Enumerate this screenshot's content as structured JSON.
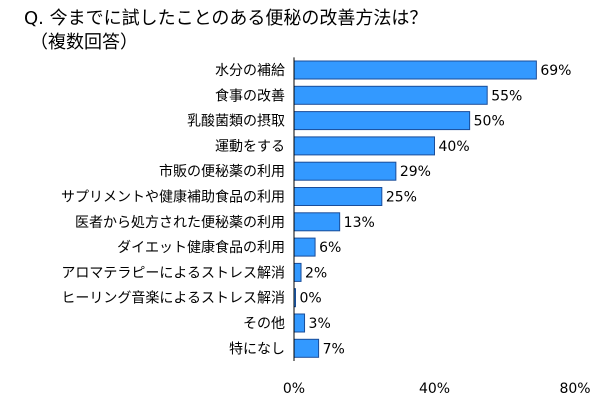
{
  "chart_data": {
    "type": "bar",
    "orientation": "horizontal",
    "title": "Q. 今までに試したことのある便秘の改善方法は？",
    "subtitle": "（複数回答）",
    "categories": [
      "水分の補給",
      "食事の改善",
      "乳酸菌類の摂取",
      "運動をする",
      "市販の便秘薬の利用",
      "サプリメントや健康補助食品の利用",
      "医者から処方された便秘薬の利用",
      "ダイエット健康食品の利用",
      "アロマテラピーによるストレス解消",
      "ヒーリング音楽によるストレス解消",
      "その他",
      "特になし"
    ],
    "values": [
      69,
      55,
      50,
      40,
      29,
      25,
      13,
      6,
      2,
      0,
      3,
      7
    ],
    "data_labels": [
      "69%",
      "55%",
      "50%",
      "40%",
      "29%",
      "25%",
      "13%",
      "6%",
      "2%",
      "0%",
      "3%",
      "7%"
    ],
    "xlim": [
      0,
      80
    ],
    "x_ticks": [
      0,
      40,
      80
    ],
    "x_tick_labels": [
      "0%",
      "40%",
      "80%"
    ],
    "grid": false,
    "legend": "none",
    "bar_color": "#3399ff",
    "bar_edge_color": "#1a4d99"
  }
}
